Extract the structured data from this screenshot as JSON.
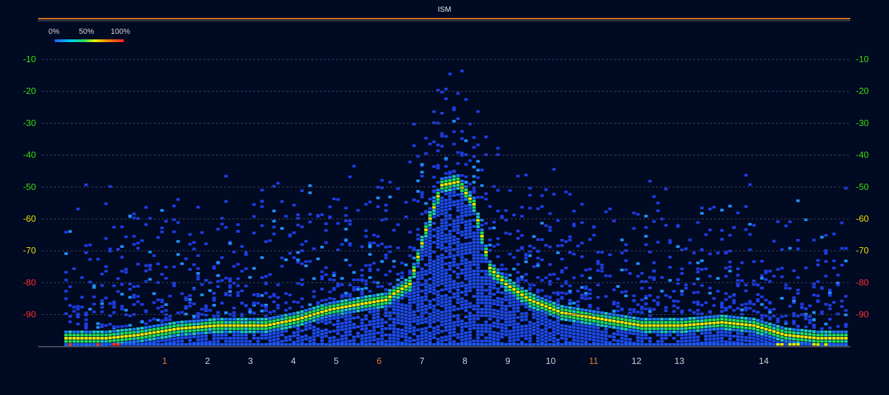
{
  "chart_data": {
    "type": "heatmap",
    "title": "ISM",
    "legend": {
      "labels": [
        "0%",
        "50%",
        "100%"
      ],
      "placement": "top-left"
    },
    "y_ticks": [
      {
        "label": "-10",
        "color": "#38e000"
      },
      {
        "label": "-20",
        "color": "#38e000"
      },
      {
        "label": "-30",
        "color": "#38e000"
      },
      {
        "label": "-40",
        "color": "#38e000"
      },
      {
        "label": "-50",
        "color": "#38e000"
      },
      {
        "label": "-60",
        "color": "#e8e000"
      },
      {
        "label": "-70",
        "color": "#e8e000"
      },
      {
        "label": "-80",
        "color": "#ff3030"
      },
      {
        "label": "-90",
        "color": "#ff3030"
      }
    ],
    "x_ticks": [
      {
        "label": "1",
        "highlight": true
      },
      {
        "label": "2",
        "highlight": false
      },
      {
        "label": "3",
        "highlight": false
      },
      {
        "label": "4",
        "highlight": false
      },
      {
        "label": "5",
        "highlight": false
      },
      {
        "label": "6",
        "highlight": true
      },
      {
        "label": "7",
        "highlight": false
      },
      {
        "label": "8",
        "highlight": false
      },
      {
        "label": "9",
        "highlight": false
      },
      {
        "label": "10",
        "highlight": false
      },
      {
        "label": "11",
        "highlight": true
      },
      {
        "label": "12",
        "highlight": false
      },
      {
        "label": "13",
        "highlight": false
      },
      {
        "label": "14",
        "highlight": false
      }
    ],
    "ylim": [
      -100,
      -5
    ],
    "grid": true,
    "noise_floor_trace": [
      [
        0,
        -97
      ],
      [
        4,
        -97
      ],
      [
        10,
        -97
      ],
      [
        18,
        -96
      ],
      [
        28,
        -94
      ],
      [
        38,
        -93
      ],
      [
        50,
        -93
      ],
      [
        58,
        -91
      ],
      [
        66,
        -88
      ],
      [
        75,
        -86
      ],
      [
        80,
        -85
      ],
      [
        82,
        -83
      ],
      [
        86,
        -80
      ],
      [
        90,
        -63
      ],
      [
        94,
        -49
      ],
      [
        98,
        -48
      ],
      [
        102,
        -55
      ],
      [
        106,
        -75
      ],
      [
        110,
        -80
      ],
      [
        116,
        -85
      ],
      [
        124,
        -89
      ],
      [
        134,
        -91
      ],
      [
        144,
        -93
      ],
      [
        154,
        -93
      ],
      [
        164,
        -92
      ],
      [
        172,
        -93
      ],
      [
        180,
        -96
      ],
      [
        188,
        -97
      ],
      [
        196,
        -97
      ]
    ],
    "colors": {
      "low": "#1e5cff",
      "mid": "#20e060",
      "high": "#ff2020",
      "grid": "#3a4460",
      "title_line": "#d87a2a",
      "tick": "#d0d0d0",
      "tick_highlight": "#e87a2a"
    }
  }
}
